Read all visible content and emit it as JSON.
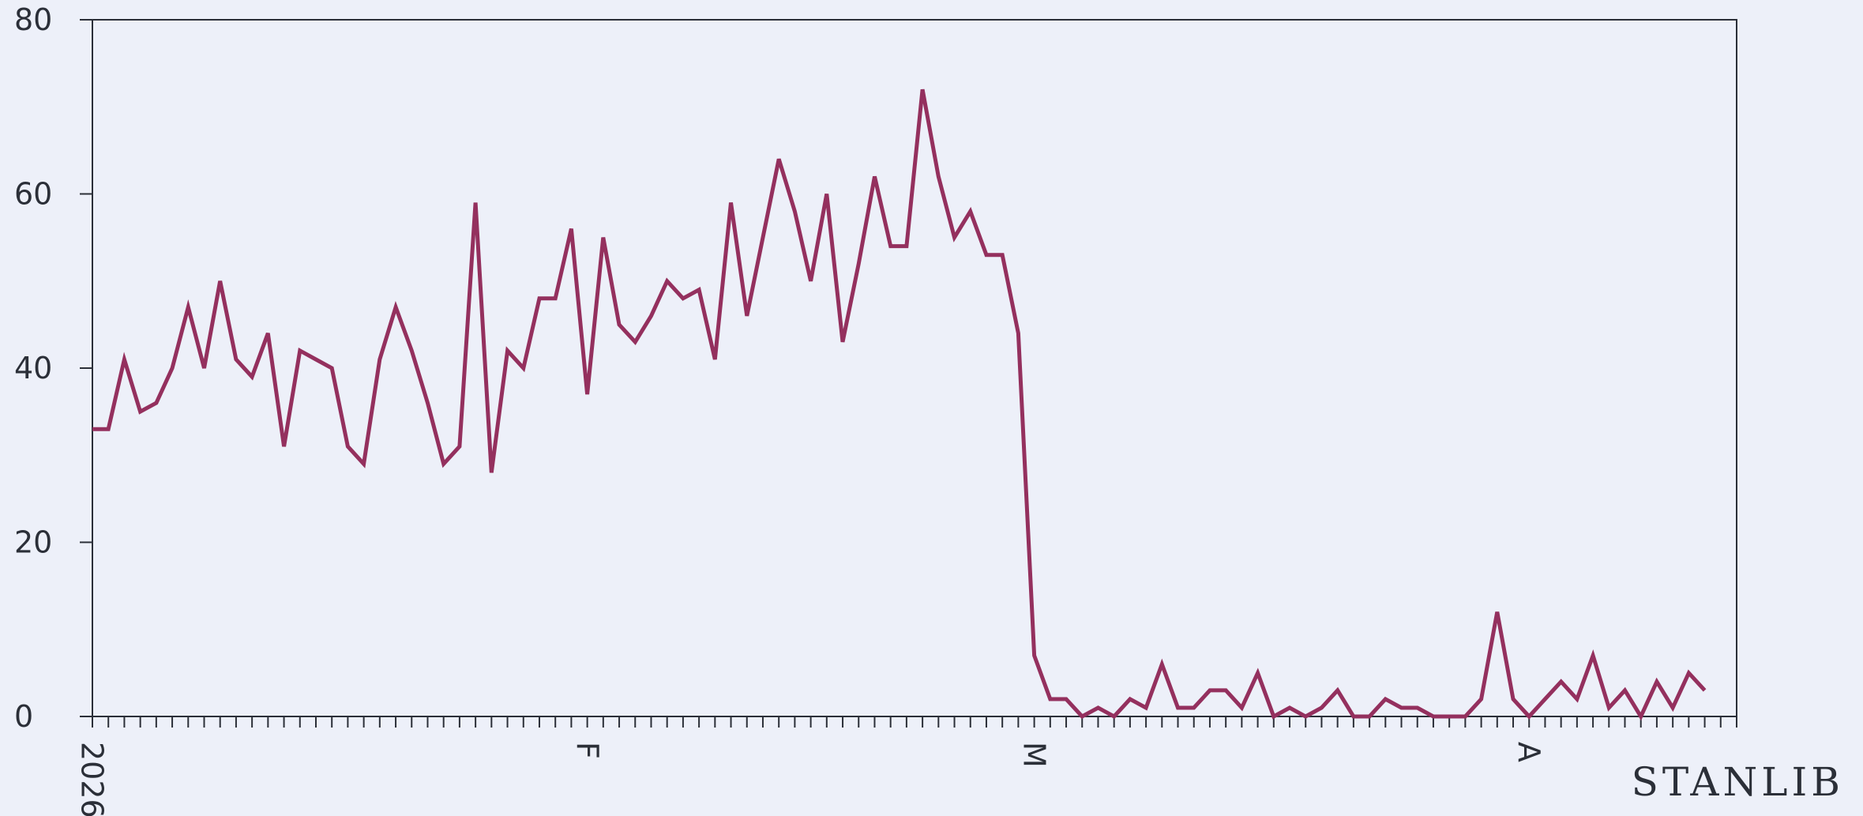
{
  "brand": {
    "text": "STANLIB"
  },
  "colors": {
    "background": "#edf0f9",
    "line": "#94305e",
    "axis": "#2b2f38"
  },
  "chart_data": {
    "type": "line",
    "title": "",
    "xlabel": "",
    "ylabel": "",
    "ylim": [
      0,
      80
    ],
    "yticks": [
      0,
      20,
      40,
      60,
      80
    ],
    "xlim": [
      "2026-01-01",
      "2026-04-14"
    ],
    "x_tick_labels": [
      {
        "date": "2026-01-01",
        "label": "2026"
      },
      {
        "date": "2026-02-01",
        "label": "F"
      },
      {
        "date": "2026-03-01",
        "label": "M"
      },
      {
        "date": "2026-04-01",
        "label": "A"
      }
    ],
    "grid": false,
    "legend": "none",
    "series": [
      {
        "start_date": "2026-01-01",
        "step_days": 1,
        "values": [
          33,
          33,
          41,
          35,
          36,
          40,
          47,
          40,
          50,
          41,
          39,
          44,
          31,
          42,
          41,
          40,
          31,
          29,
          41,
          47,
          42,
          36,
          29,
          31,
          59,
          28,
          42,
          40,
          48,
          48,
          56,
          37,
          55,
          45,
          43,
          46,
          50,
          48,
          49,
          41,
          59,
          46,
          55,
          64,
          58,
          50,
          60,
          43,
          52,
          62,
          54,
          54,
          72,
          62,
          55,
          58,
          53,
          53,
          44,
          7,
          2,
          2,
          0,
          1,
          0,
          2,
          1,
          6,
          1,
          1,
          3,
          3,
          1,
          5,
          0,
          1,
          0,
          1,
          3,
          0,
          0,
          2,
          1,
          1,
          0,
          0,
          0,
          2,
          12,
          2,
          0,
          2,
          4,
          2,
          7,
          1,
          3,
          0,
          4,
          1,
          5,
          3
        ]
      }
    ]
  }
}
